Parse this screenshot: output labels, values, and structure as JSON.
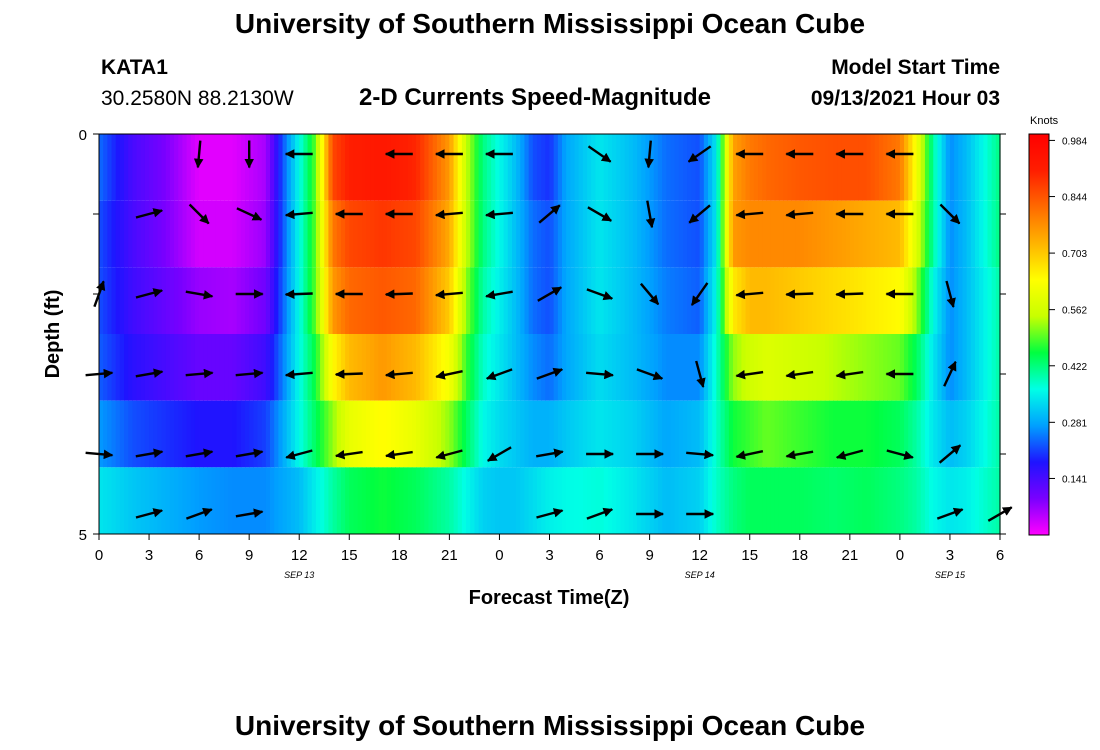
{
  "header": {
    "title_top": "University of Southern Mississippi Ocean Cube",
    "title_bottom": "University of Southern Mississippi Ocean Cube",
    "station_id": "KATA1",
    "station_coords": "30.2580N  88.2130W",
    "plot_title": "2-D Currents Speed-Magnitude",
    "model_start_label": "Model Start Time",
    "model_start_value": "09/13/2021 Hour 03"
  },
  "chart_data": {
    "type": "heatmap",
    "title": "2-D Currents Speed-Magnitude",
    "xlabel": "Forecast Time(Z)",
    "ylabel": "Depth (ft)",
    "ylim": [
      0,
      5
    ],
    "y_tick_labels": [
      "0",
      "5"
    ],
    "y_minor_ticks": [
      1,
      2,
      3,
      4
    ],
    "x_range_hours": [
      0,
      54
    ],
    "x_tick_hours": [
      0,
      3,
      6,
      9,
      12,
      15,
      18,
      21,
      24,
      27,
      30,
      33,
      36,
      39,
      42,
      45,
      48,
      51,
      54
    ],
    "x_tick_labels": [
      "0",
      "3",
      "6",
      "9",
      "12",
      "15",
      "18",
      "21",
      "0",
      "3",
      "6",
      "9",
      "12",
      "15",
      "18",
      "21",
      "0",
      "3",
      "6"
    ],
    "date_labels": [
      {
        "text": "SEP 13",
        "hour": 12
      },
      {
        "text": "SEP 14",
        "hour": 36
      },
      {
        "text": "SEP 15",
        "hour": 51
      }
    ],
    "depth_layers": [
      0.25,
      1.0,
      2.0,
      3.0,
      4.0,
      4.75
    ],
    "speed_knots": {
      "hours": [
        0,
        2,
        4,
        6,
        8,
        10,
        11,
        12,
        13,
        14,
        15,
        17,
        19,
        21,
        22,
        23,
        24,
        25,
        26,
        27,
        28,
        30,
        32,
        34,
        36,
        37,
        38,
        39,
        40,
        42,
        44,
        46,
        48,
        49,
        50,
        51,
        52,
        54
      ],
      "layers": [
        [
          0.24,
          0.14,
          0.09,
          0.02,
          0.02,
          0.06,
          0.22,
          0.36,
          0.5,
          0.86,
          0.91,
          0.93,
          0.9,
          0.76,
          0.55,
          0.42,
          0.36,
          0.3,
          0.22,
          0.2,
          0.28,
          0.34,
          0.3,
          0.24,
          0.22,
          0.34,
          0.75,
          0.8,
          0.82,
          0.84,
          0.85,
          0.85,
          0.8,
          0.62,
          0.4,
          0.26,
          0.3,
          0.42
        ],
        [
          0.22,
          0.14,
          0.09,
          0.03,
          0.03,
          0.07,
          0.22,
          0.36,
          0.5,
          0.8,
          0.86,
          0.88,
          0.86,
          0.74,
          0.55,
          0.42,
          0.36,
          0.3,
          0.24,
          0.22,
          0.28,
          0.34,
          0.3,
          0.24,
          0.22,
          0.34,
          0.76,
          0.78,
          0.78,
          0.78,
          0.76,
          0.74,
          0.72,
          0.58,
          0.4,
          0.26,
          0.3,
          0.42
        ],
        [
          0.22,
          0.15,
          0.11,
          0.07,
          0.06,
          0.1,
          0.23,
          0.36,
          0.5,
          0.76,
          0.82,
          0.84,
          0.82,
          0.7,
          0.52,
          0.4,
          0.35,
          0.3,
          0.24,
          0.22,
          0.28,
          0.34,
          0.3,
          0.25,
          0.23,
          0.36,
          0.66,
          0.72,
          0.72,
          0.7,
          0.68,
          0.66,
          0.64,
          0.52,
          0.36,
          0.26,
          0.3,
          0.4
        ],
        [
          0.23,
          0.17,
          0.14,
          0.11,
          0.11,
          0.15,
          0.25,
          0.36,
          0.46,
          0.64,
          0.72,
          0.76,
          0.72,
          0.62,
          0.48,
          0.38,
          0.34,
          0.3,
          0.26,
          0.24,
          0.28,
          0.33,
          0.3,
          0.26,
          0.26,
          0.38,
          0.52,
          0.56,
          0.58,
          0.56,
          0.54,
          0.52,
          0.5,
          0.44,
          0.34,
          0.26,
          0.3,
          0.4
        ],
        [
          0.27,
          0.22,
          0.2,
          0.18,
          0.18,
          0.21,
          0.28,
          0.36,
          0.44,
          0.52,
          0.6,
          0.64,
          0.6,
          0.52,
          0.44,
          0.36,
          0.33,
          0.31,
          0.29,
          0.29,
          0.31,
          0.34,
          0.32,
          0.28,
          0.3,
          0.38,
          0.46,
          0.48,
          0.5,
          0.48,
          0.46,
          0.46,
          0.44,
          0.4,
          0.34,
          0.3,
          0.32,
          0.4
        ],
        [
          0.34,
          0.31,
          0.29,
          0.27,
          0.26,
          0.26,
          0.28,
          0.3,
          0.35,
          0.4,
          0.44,
          0.46,
          0.44,
          0.4,
          0.36,
          0.32,
          0.31,
          0.31,
          0.33,
          0.35,
          0.36,
          0.37,
          0.34,
          0.3,
          0.32,
          0.38,
          0.42,
          0.44,
          0.44,
          0.44,
          0.43,
          0.44,
          0.42,
          0.4,
          0.36,
          0.34,
          0.35,
          0.4
        ]
      ]
    },
    "vector_hours": [
      0,
      3,
      6,
      9,
      12,
      15,
      18,
      21,
      24,
      27,
      30,
      33,
      36,
      39,
      42,
      45,
      48,
      51,
      54
    ],
    "vector_angles_deg": [
      [
        null,
        null,
        95,
        90,
        180,
        null,
        180,
        180,
        180,
        null,
        35,
        95,
        145,
        180,
        180,
        180,
        180,
        null,
        null
      ],
      [
        null,
        -15,
        45,
        25,
        175,
        180,
        180,
        175,
        175,
        -40,
        30,
        80,
        140,
        175,
        175,
        180,
        180,
        45,
        null
      ],
      [
        -70,
        -15,
        10,
        0,
        178,
        180,
        178,
        175,
        170,
        -30,
        20,
        50,
        125,
        175,
        178,
        178,
        180,
        75,
        null
      ],
      [
        -5,
        -10,
        -5,
        -5,
        175,
        178,
        175,
        168,
        160,
        -20,
        5,
        20,
        75,
        172,
        172,
        172,
        180,
        -65,
        null
      ],
      [
        5,
        -10,
        -10,
        -10,
        165,
        172,
        172,
        165,
        150,
        -10,
        0,
        0,
        5,
        168,
        170,
        165,
        15,
        -40,
        null
      ],
      [
        null,
        -15,
        -20,
        -10,
        null,
        null,
        null,
        null,
        null,
        -15,
        -20,
        0,
        0,
        null,
        null,
        null,
        null,
        -20,
        -30
      ]
    ],
    "colorbar": {
      "label": "Knots",
      "min": 0.0,
      "max": 1.0,
      "tick_values": [
        0.984,
        0.844,
        0.703,
        0.562,
        0.422,
        0.281,
        0.141
      ],
      "tick_labels": [
        "0.984",
        "0.844",
        "0.703",
        "0.562",
        "0.422",
        "0.281",
        "0.141"
      ]
    },
    "colors": [
      "#ff00ff",
      "#7a00ff",
      "#1e14ff",
      "#00a0ff",
      "#00ffe6",
      "#00ff40",
      "#c8ff00",
      "#ffff00",
      "#ffb400",
      "#ff6a00",
      "#ff1e00",
      "#ff0000"
    ]
  }
}
